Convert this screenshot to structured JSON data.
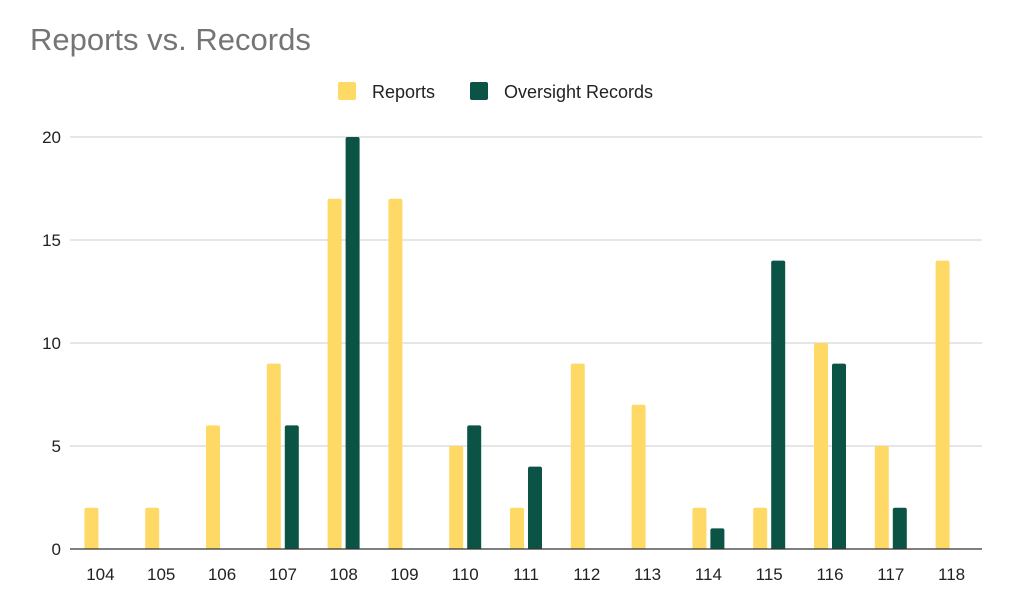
{
  "chart_data": {
    "type": "bar",
    "title": "Reports vs. Records",
    "xlabel": "",
    "ylabel": "",
    "categories": [
      "104",
      "105",
      "106",
      "107",
      "108",
      "109",
      "110",
      "111",
      "112",
      "113",
      "114",
      "115",
      "116",
      "117",
      "118"
    ],
    "series": [
      {
        "name": "Reports",
        "color": "#FFD966",
        "values": [
          2,
          2,
          6,
          9,
          17,
          17,
          5,
          2,
          9,
          7,
          2,
          2,
          10,
          5,
          14
        ]
      },
      {
        "name": "Oversight Records",
        "color": "#0B5345",
        "values": [
          0,
          0,
          0,
          6,
          20,
          0,
          6,
          4,
          0,
          0,
          1,
          14,
          9,
          2,
          0
        ]
      }
    ],
    "ylim": [
      0,
      20
    ],
    "yticks": [
      0,
      5,
      10,
      15,
      20
    ],
    "grid": true,
    "legend_position": "top-center"
  }
}
